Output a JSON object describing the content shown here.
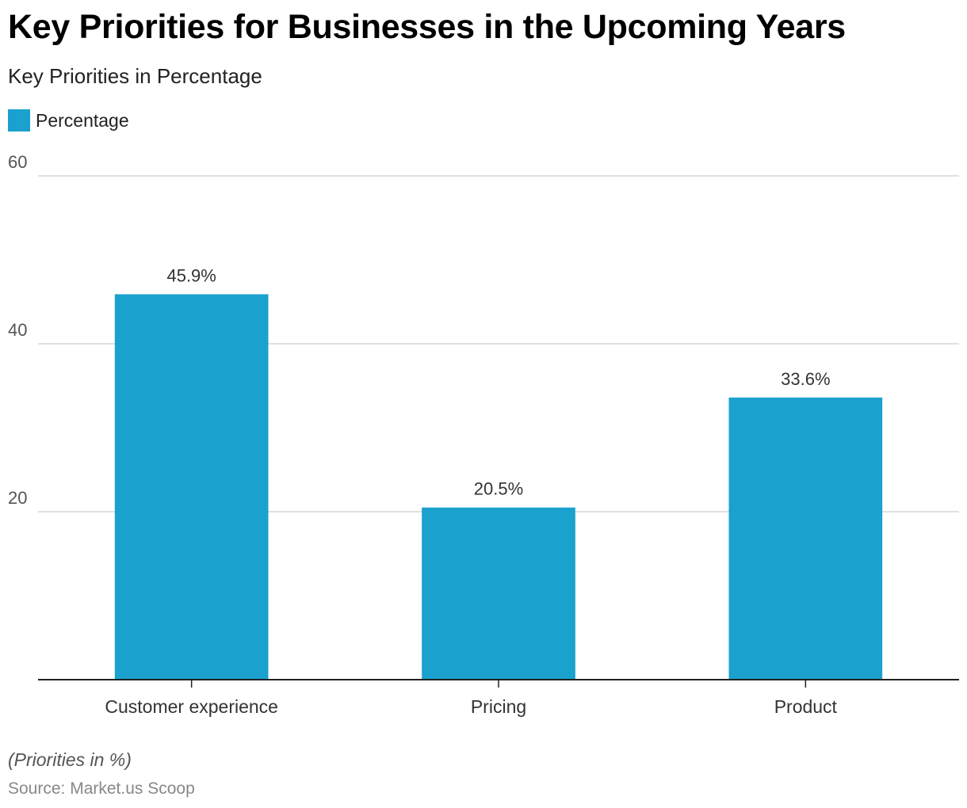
{
  "chart_data": {
    "type": "bar",
    "title": "Key Priorities for Businesses in the Upcoming Years",
    "subtitle": "Key Priorities in Percentage",
    "categories": [
      "Customer experience",
      "Pricing",
      "Product"
    ],
    "series": [
      {
        "name": "Percentage",
        "values": [
          45.9,
          20.5,
          33.6
        ],
        "data_labels": [
          "45.9%",
          "20.5%",
          "33.6%"
        ],
        "color": "#1aa1cd"
      }
    ],
    "y_ticks": [
      "20",
      "40",
      "60"
    ],
    "y_tick_values": [
      20,
      40,
      60
    ],
    "ylim": [
      0,
      60
    ],
    "grid": true,
    "legend_position": "top-left"
  },
  "footer": {
    "note": "(Priorities in %)",
    "source": "Source: Market.us Scoop"
  }
}
